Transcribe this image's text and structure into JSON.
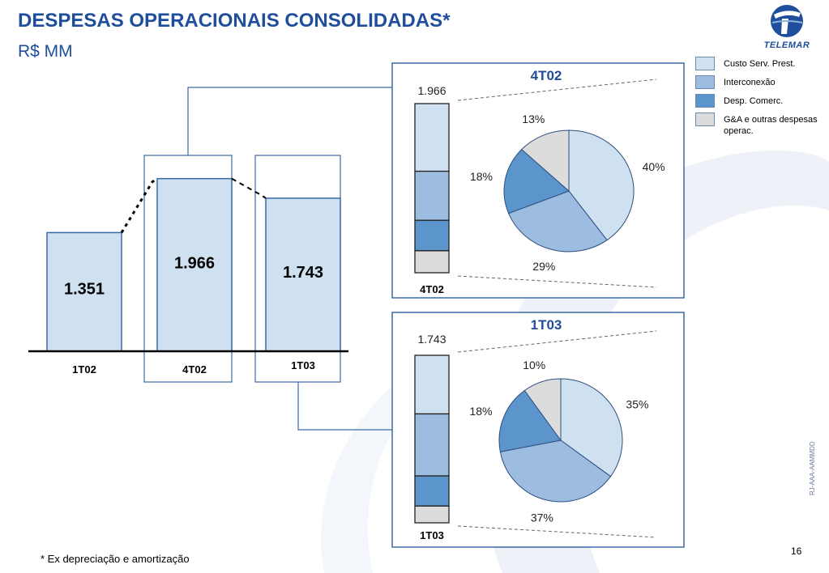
{
  "page": {
    "title": "DESPESAS OPERACIONAIS CONSOLIDADAS*",
    "subtitle": "R$ MM",
    "logo_text": "TELEMAR",
    "footnote": "* Ex depreciação e amortização",
    "page_number": "16",
    "doc_code": "RJ-AAA-AAMMDD"
  },
  "legend": {
    "items": [
      {
        "label": "Custo Serv. Prest.",
        "color": "#cfe0f1"
      },
      {
        "label": "Interconexão",
        "color": "#9dbde0"
      },
      {
        "label": "Desp. Comerc.",
        "color": "#5b95cb"
      },
      {
        "label": "G&A  e outras despesas operac.",
        "color": "#dcdcdc"
      }
    ]
  },
  "chart_data": [
    {
      "type": "bar",
      "categories": [
        "1T02",
        "4T02",
        "1T03"
      ],
      "values": [
        1351,
        1966,
        1743
      ],
      "value_labels": [
        "1.351",
        "1.966",
        "1.743"
      ],
      "ylim": [
        0,
        2400
      ],
      "bar_color": "#cfe0f1"
    },
    {
      "type": "pie",
      "title": "4T02",
      "total_label": "1.966",
      "stack_label": "4T02",
      "slices": [
        {
          "name": "Custo Serv. Prest.",
          "value": 40,
          "label": "40%",
          "color": "#cfe0f1"
        },
        {
          "name": "Interconexão",
          "value": 29,
          "label": "29%",
          "color": "#9dbde0"
        },
        {
          "name": "Desp. Comerc.",
          "value": 18,
          "label": "18%",
          "color": "#5b95cb"
        },
        {
          "name": "G&A  e outras despesas operac.",
          "value": 13,
          "label": "13%",
          "color": "#dcdcdc"
        }
      ]
    },
    {
      "type": "pie",
      "title": "1T03",
      "total_label": "1.743",
      "stack_label": "1T03",
      "slices": [
        {
          "name": "Custo Serv. Prest.",
          "value": 35,
          "label": "35%",
          "color": "#cfe0f1"
        },
        {
          "name": "Interconexão",
          "value": 37,
          "label": "37%",
          "color": "#9dbde0"
        },
        {
          "name": "Desp. Comerc.",
          "value": 18,
          "label": "18%",
          "color": "#5b95cb"
        },
        {
          "name": "G&A  e outras despesas operac.",
          "value": 10,
          "label": "10%",
          "color": "#dcdcdc"
        }
      ]
    }
  ]
}
